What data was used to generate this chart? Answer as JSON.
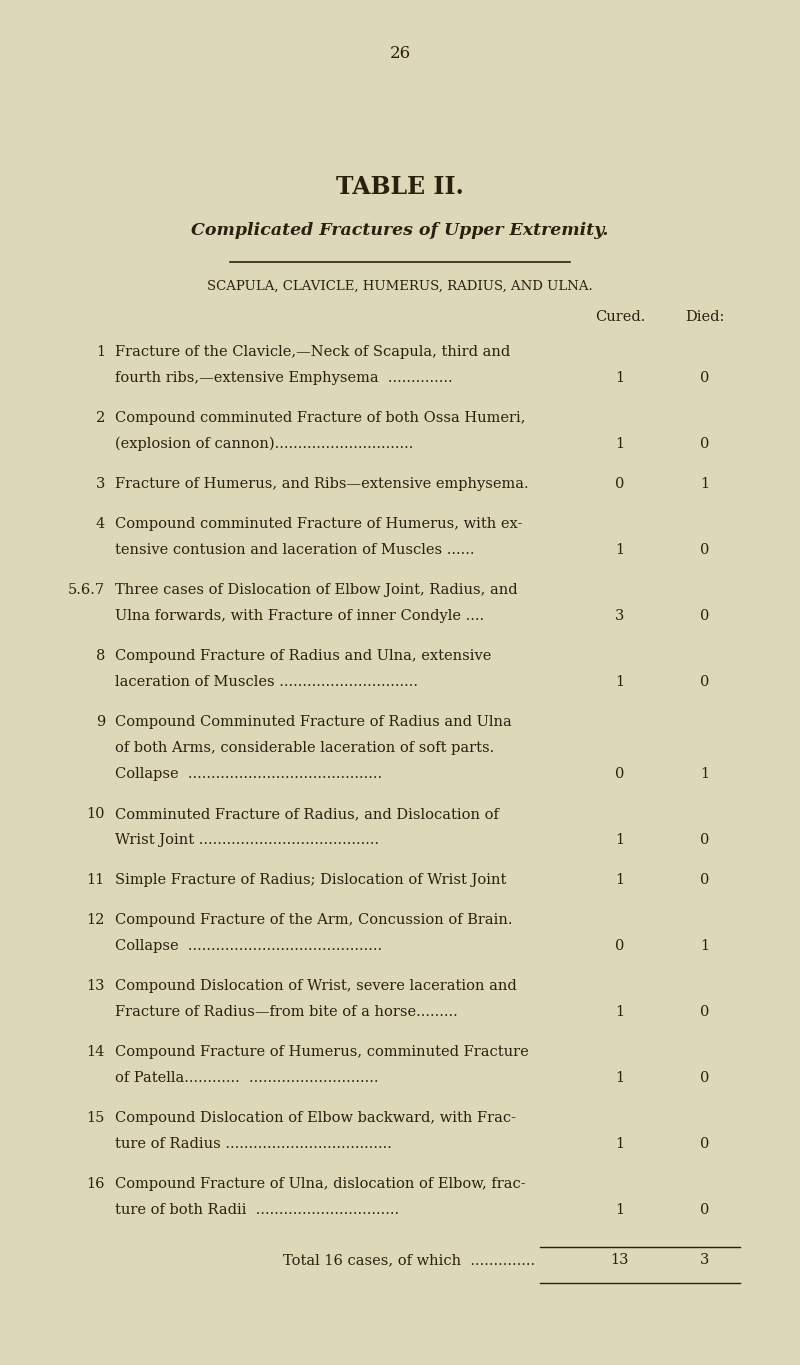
{
  "page_number": "26",
  "title": "TABLE II.",
  "subtitle": "Complicated Fractures of Upper Extremity.",
  "subheader": "SCAPULA, CLAVICLE, HUMERUS, RADIUS, AND ULNA.",
  "col_header_cured": "Cured.",
  "col_header_died": "Died:",
  "bg_color": "#ddd9b8",
  "text_color": "#2b200e",
  "rows": [
    {
      "num": "1",
      "lines": [
        "Fracture of the Clavicle,—Neck of Scapula, third and",
        "fourth ribs,—extensive Emphysema  .............."
      ],
      "cured": "1",
      "died": "0"
    },
    {
      "num": "2",
      "lines": [
        "Compound comminuted Fracture of both Ossa Humeri,",
        "(explosion of cannon).............................."
      ],
      "cured": "1",
      "died": "0"
    },
    {
      "num": "3",
      "lines": [
        "Fracture of Humerus, and Ribs—extensive emphysema."
      ],
      "cured": "0",
      "died": "1"
    },
    {
      "num": "4",
      "lines": [
        "Compound comminuted Fracture of Humerus, with ex-",
        "tensive contusion and laceration of Muscles ......"
      ],
      "cured": "1",
      "died": "0"
    },
    {
      "num": "5.6.7",
      "lines": [
        "Three cases of Dislocation of Elbow Joint, Radius, and",
        "Ulna forwards, with Fracture of inner Condyle ...."
      ],
      "cured": "3",
      "died": "0"
    },
    {
      "num": "8",
      "lines": [
        "Compound Fracture of Radius and Ulna, extensive",
        "laceration of Muscles .............................."
      ],
      "cured": "1",
      "died": "0"
    },
    {
      "num": "9",
      "lines": [
        "Compound Comminuted Fracture of Radius and Ulna",
        "of both Arms, considerable laceration of soft parts.",
        "Collapse  .........................................."
      ],
      "cured": "0",
      "died": "1"
    },
    {
      "num": "10",
      "lines": [
        "Comminuted Fracture of Radius, and Dislocation of",
        "Wrist Joint ......................................."
      ],
      "cured": "1",
      "died": "0"
    },
    {
      "num": "11",
      "lines": [
        "Simple Fracture of Radius; Dislocation of Wrist Joint"
      ],
      "cured": "1",
      "died": "0"
    },
    {
      "num": "12",
      "lines": [
        "Compound Fracture of the Arm, Concussion of Brain.",
        "Collapse  .........................................."
      ],
      "cured": "0",
      "died": "1"
    },
    {
      "num": "13",
      "lines": [
        "Compound Dislocation of Wrist, severe laceration and",
        "Fracture of Radius—from bite of a horse........."
      ],
      "cured": "1",
      "died": "0"
    },
    {
      "num": "14",
      "lines": [
        "Compound Fracture of Humerus, comminuted Fracture",
        "of Patella............  ............................"
      ],
      "cured": "1",
      "died": "0"
    },
    {
      "num": "15",
      "lines": [
        "Compound Dislocation of Elbow backward, with Frac-",
        "ture of Radius ...................................."
      ],
      "cured": "1",
      "died": "0"
    },
    {
      "num": "16",
      "lines": [
        "Compound Fracture of Ulna, dislocation of Elbow, frac-",
        "ture of both Radii  ..............................."
      ],
      "cured": "1",
      "died": "0"
    }
  ],
  "total_line": "Total 16 cases, of which  ..............",
  "total_cured": "13",
  "total_died": "3",
  "figw": 8.0,
  "figh": 13.65,
  "dpi": 100
}
